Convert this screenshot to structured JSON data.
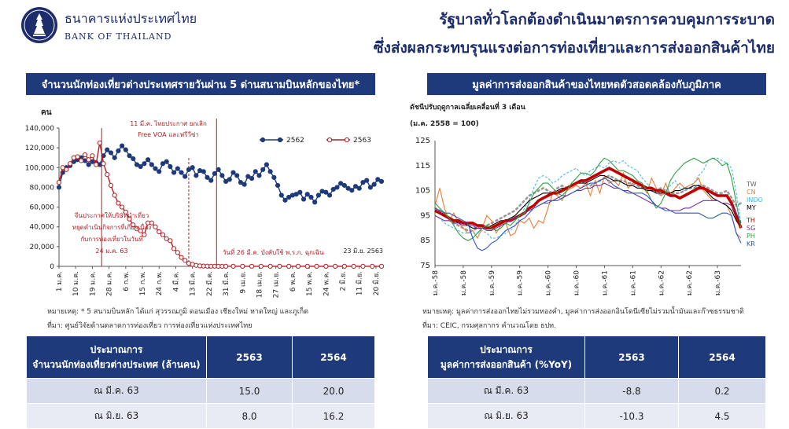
{
  "header": {
    "bank_name_th": "ธนาคารแห่งประเทศไทย",
    "bank_name_en": "BANK OF THAILAND",
    "headline_line1": "รัฐบาลทั่วโลกต้องดำเนินมาตรการควบคุมการระบาด",
    "headline_line2": "ซึ่งส่งผลกระทบรุนแรงต่อการท่องเที่ยวและการส่งออกสินค้าไทย"
  },
  "left_panel": {
    "title": "จำนวนนักท่องเที่ยวต่างประเทศรายวันผ่าน 5 ด่านสนามบินหลักของไทย*",
    "note": "หมายเหตุ: * 5 สนามบินหลัก ได้แก่ สุวรรณภูมิ ดอนเมือง เชียงใหม่ หาดใหญ่ และภูเก็ต",
    "source": "ที่มา: ศูนย์วิจัยด้านตลาดการท่องเที่ยว การท่องเที่ยวแห่งประเทศไทย",
    "table": {
      "header_line1": "ประมาณการ",
      "header_line2": "จำนวนนักท่องเที่ยวต่างประเทศ (ล้านคน)",
      "col1": "2563",
      "col2": "2564",
      "rows": [
        {
          "label": "ณ มี.ค. 63",
          "v1": "15.0",
          "v2": "20.0"
        },
        {
          "label": "ณ มิ.ย. 63",
          "v1": "8.0",
          "v2": "16.2"
        }
      ]
    }
  },
  "right_panel": {
    "title": "มูลค่าการส่งออกสินค้าของไทยหดตัวสอดคล้องกับภูมิภาค",
    "note": "หมายเหตุ: มูลค่าการส่งออกไทยไม่รวมทองคำ, มูลค่าการส่งออกอินโดนีเซียไม่รวมน้ำมันและก๊าซธรรมชาติ",
    "source": "ที่มา: CEIC, กรมศุลกากร คำนวณโดย ธปท.",
    "table": {
      "header_line1": "ประมาณการ",
      "header_line2": "มูลค่าการส่งออกสินค้า (%YoY)",
      "col1": "2563",
      "col2": "2564",
      "rows": [
        {
          "label": "ณ มี.ค. 63",
          "v1": "-8.8",
          "v2": "0.2"
        },
        {
          "label": "ณ มิ.ย. 63",
          "v1": "-10.3",
          "v2": "4.5"
        }
      ]
    }
  },
  "chart_data": [
    {
      "type": "line",
      "ylabel": "คน",
      "ylim": [
        0,
        140000
      ],
      "yticks": [
        "0",
        "20,000",
        "40,000",
        "60,000",
        "80,000",
        "100,000",
        "120,000",
        "140,000"
      ],
      "x_tick_labels": [
        "1 ม.ค.",
        "10 ม.ค.",
        "19 ม.ค.",
        "28 ม.ค.",
        "6 ก.พ.",
        "15 ก.พ.",
        "24 ก.พ.",
        "4 มี.ค.",
        "13 มี.ค.",
        "22 มี.ค.",
        "31 มี.ค.",
        "9 เม.ย.",
        "18 เม.ย.",
        "27 เม.ย.",
        "6 พ.ค.",
        "15 พ.ค.",
        "24 พ.ค.",
        "2 มิ.ย.",
        "11 มิ.ย.",
        "20 มิ.ย."
      ],
      "x_tick_days": [
        1,
        10,
        19,
        28,
        37,
        46,
        55,
        64,
        73,
        82,
        91,
        100,
        109,
        118,
        127,
        136,
        145,
        154,
        163,
        172
      ],
      "x_range_days": [
        1,
        175
      ],
      "series": [
        {
          "name": "2562",
          "color": "#1f3a7a",
          "days": [
            1,
            3,
            5,
            7,
            9,
            11,
            13,
            15,
            17,
            19,
            21,
            23,
            25,
            27,
            29,
            31,
            33,
            35,
            37,
            39,
            41,
            43,
            45,
            47,
            49,
            51,
            53,
            55,
            57,
            59,
            61,
            63,
            65,
            67,
            69,
            71,
            73,
            75,
            77,
            79,
            81,
            83,
            85,
            87,
            89,
            91,
            93,
            95,
            97,
            99,
            101,
            103,
            105,
            107,
            109,
            111,
            113,
            115,
            117,
            119,
            121,
            123,
            125,
            127,
            129,
            131,
            133,
            135,
            137,
            139,
            141,
            143,
            145,
            147,
            149,
            151,
            153,
            155,
            157,
            159,
            161,
            163,
            165,
            167,
            169,
            171,
            173,
            175
          ],
          "values": [
            80000,
            95000,
            100000,
            102000,
            106000,
            108000,
            110000,
            107000,
            103000,
            106000,
            105000,
            103000,
            112000,
            118000,
            115000,
            110000,
            117000,
            122000,
            118000,
            112000,
            109000,
            103000,
            101000,
            104000,
            108000,
            103000,
            99000,
            96000,
            104000,
            106000,
            101000,
            95000,
            99000,
            95000,
            91000,
            98000,
            100000,
            92000,
            97000,
            96000,
            90000,
            87000,
            94000,
            98000,
            92000,
            86000,
            88000,
            95000,
            92000,
            85000,
            83000,
            91000,
            89000,
            96000,
            92000,
            98000,
            103000,
            96000,
            90000,
            82000,
            72000,
            67000,
            70000,
            72000,
            73000,
            75000,
            68000,
            73000,
            70000,
            65000,
            72000,
            76000,
            75000,
            72000,
            78000,
            80000,
            84000,
            82000,
            79000,
            77000,
            81000,
            79000,
            85000,
            87000,
            80000,
            83000,
            88000,
            86000
          ]
        },
        {
          "name": "2563",
          "color": "#b21f24",
          "days": [
            1,
            3,
            5,
            7,
            9,
            11,
            13,
            15,
            17,
            19,
            21,
            23,
            25,
            27,
            29,
            31,
            33,
            35,
            37,
            39,
            41,
            43,
            45,
            47,
            49,
            51,
            53,
            55,
            57,
            59,
            61,
            63,
            65,
            67,
            69,
            71,
            73,
            75,
            77,
            79,
            81,
            83,
            85,
            87,
            89,
            91,
            95,
            100,
            105,
            110,
            115,
            120,
            125,
            130,
            135,
            140,
            145,
            150,
            155,
            160,
            165,
            170,
            175
          ],
          "values": [
            85000,
            100000,
            98000,
            104000,
            110000,
            111000,
            107000,
            113000,
            108000,
            112000,
            103000,
            125000,
            104000,
            93000,
            82000,
            72000,
            64000,
            60000,
            55000,
            48000,
            42000,
            38000,
            36000,
            32000,
            44000,
            44000,
            40000,
            35000,
            32000,
            28000,
            26000,
            18000,
            14000,
            9000,
            6000,
            3000,
            2000,
            1000,
            500,
            300,
            200,
            150,
            150,
            100,
            100,
            100,
            100,
            100,
            100,
            100,
            100,
            100,
            100,
            100,
            100,
            100,
            100,
            100,
            100,
            100,
            100,
            100,
            100
          ]
        }
      ],
      "annotations": {
        "visa_line1": "11 มี.ค. ไทยประกาศ ยกเลิก",
        "visa_line2": "Free VOA และฟรีวีซ่า",
        "china_line1": "จีนประกาศให้บริษัทนำเที่ยว",
        "china_line2": "หยุดดำเนินกิจการที่เกี่ยวเนื่อง",
        "china_line3": "กับการท่องเที่ยวในวันที่",
        "china_line4": "24 ม.ค. 63",
        "ban": "วันที่ 26 มี.ค. บังคับใช้ พ.ร.ก. ฉุกเฉิน",
        "last_date": "23 มิ.ย. 2563"
      },
      "event_days": {
        "china": 24,
        "visa": 71,
        "ban": 86
      }
    },
    {
      "type": "line",
      "title": "ดัชนีปรับฤดูกาลเฉลี่ยเคลื่อนที่ 3 เดือน",
      "subtitle": "(ม.ค. 2558 = 100)",
      "ylim": [
        75,
        125
      ],
      "yticks": [
        "75",
        "85",
        "95",
        "105",
        "115",
        "125"
      ],
      "x_tick_labels": [
        "ม.ค.-58",
        "ม.ค.-58",
        "ม.ค.-59",
        "ม.ค.-59",
        "ม.ค.-60",
        "ม.ค.-60",
        "ม.ค.-61",
        "ม.ค.-61",
        "ม.ค.-62",
        "ม.ค.-62",
        "ม.ค.-63"
      ],
      "x_tick_months": [
        0,
        6,
        12,
        18,
        24,
        30,
        36,
        42,
        48,
        54,
        60
      ],
      "x_range_months": [
        0,
        65
      ],
      "series": [
        {
          "name": "TW",
          "color": "#999999",
          "dashed": true,
          "values": [
            98,
            97,
            96,
            94,
            92,
            91,
            90,
            89,
            89,
            90,
            90,
            91,
            92,
            93,
            94,
            95,
            96,
            97,
            99,
            101,
            103,
            104,
            105,
            106,
            105,
            104,
            106,
            107,
            106,
            107,
            108,
            109,
            108,
            107,
            108,
            109,
            110,
            111,
            110,
            109,
            109,
            108,
            108,
            107,
            106,
            106,
            105,
            105,
            106,
            105,
            104,
            104,
            104,
            105,
            106,
            106,
            107,
            107,
            106,
            105,
            104,
            104,
            105,
            102,
            99,
            100
          ]
        },
        {
          "name": "CN",
          "color": "#ed7d31",
          "dashed": false,
          "values": [
            99,
            106,
            98,
            93,
            96,
            92,
            90,
            88,
            89,
            86,
            90,
            95,
            93,
            88,
            91,
            92,
            87,
            88,
            93,
            92,
            94,
            90,
            93,
            92,
            98,
            104,
            103,
            101,
            105,
            106,
            107,
            106,
            108,
            103,
            109,
            104,
            111,
            108,
            109,
            107,
            112,
            106,
            108,
            108,
            107,
            104,
            110,
            106,
            103,
            108,
            103,
            106,
            108,
            106,
            107,
            108,
            110,
            105,
            103,
            101,
            101,
            100,
            99,
            95,
            88,
            86
          ]
        },
        {
          "name": "INDO",
          "color": "#4ab8e8",
          "dashed": true,
          "values": [
            95,
            94,
            92,
            91,
            90,
            89,
            88,
            88,
            88,
            88,
            89,
            88,
            86,
            86,
            87,
            88,
            89,
            91,
            94,
            98,
            101,
            106,
            110,
            111,
            110,
            108,
            109,
            111,
            112,
            113,
            114,
            112,
            111,
            113,
            114,
            115,
            114,
            116,
            117,
            116,
            117,
            115,
            114,
            113,
            110,
            108,
            106,
            104,
            103,
            104,
            107,
            109,
            106,
            105,
            106,
            108,
            111,
            113,
            117,
            118,
            118,
            117,
            116,
            114,
            104,
            92
          ]
        },
        {
          "name": "MY",
          "color": "#000000",
          "dashed": false,
          "values": [
            97,
            96,
            95,
            94,
            93,
            92,
            92,
            91,
            90,
            90,
            90,
            90,
            91,
            92,
            93,
            93,
            94,
            95,
            97,
            99,
            101,
            102,
            103,
            104,
            104,
            104,
            105,
            106,
            106,
            107,
            108,
            108,
            108,
            109,
            110,
            111,
            111,
            110,
            109,
            109,
            108,
            107,
            107,
            106,
            106,
            105,
            105,
            104,
            104,
            104,
            104,
            105,
            105,
            106,
            106,
            107,
            107,
            106,
            104,
            102,
            101,
            100,
            99,
            97,
            93,
            90
          ]
        },
        {
          "name": "TH",
          "color": "#c00000",
          "dashed": false,
          "thick": true,
          "values": [
            97,
            96,
            95,
            94,
            93,
            93,
            92,
            92,
            92,
            91,
            91,
            90,
            90,
            91,
            92,
            93,
            93,
            94,
            95,
            96,
            98,
            99,
            101,
            102,
            103,
            104,
            104,
            105,
            106,
            107,
            108,
            109,
            109,
            110,
            111,
            112,
            113,
            114,
            113,
            112,
            111,
            110,
            109,
            108,
            107,
            106,
            106,
            105,
            105,
            104,
            103,
            103,
            102,
            103,
            104,
            105,
            106,
            106,
            105,
            104,
            103,
            103,
            103,
            100,
            95,
            90
          ]
        },
        {
          "name": "SG",
          "color": "#7030a0",
          "dashed": false,
          "values": [
            95,
            94,
            93,
            93,
            92,
            92,
            91,
            91,
            91,
            90,
            90,
            89,
            89,
            90,
            91,
            92,
            93,
            94,
            95,
            96,
            97,
            98,
            99,
            100,
            101,
            101,
            102,
            103,
            103,
            104,
            105,
            105,
            106,
            106,
            107,
            107,
            108,
            107,
            106,
            106,
            105,
            105,
            104,
            103,
            102,
            101,
            100,
            99,
            98,
            98,
            97,
            97,
            97,
            98,
            98,
            99,
            100,
            101,
            101,
            101,
            101,
            100,
            100,
            99,
            96,
            92
          ]
        },
        {
          "name": "PH",
          "color": "#2ea043",
          "dashed": false,
          "values": [
            100,
            98,
            96,
            94,
            91,
            88,
            86,
            85,
            86,
            88,
            90,
            91,
            90,
            89,
            90,
            92,
            91,
            93,
            95,
            96,
            100,
            104,
            106,
            108,
            108,
            106,
            104,
            103,
            105,
            108,
            110,
            112,
            112,
            111,
            113,
            116,
            118,
            117,
            115,
            113,
            113,
            112,
            111,
            109,
            108,
            105,
            101,
            98,
            100,
            104,
            109,
            112,
            114,
            116,
            117,
            118,
            117,
            116,
            117,
            118,
            117,
            115,
            116,
            110,
            100,
            90
          ]
        },
        {
          "name": "KR",
          "color": "#2f56c6",
          "dashed": false,
          "values": [
            98,
            97,
            96,
            96,
            95,
            94,
            93,
            92,
            86,
            82,
            81,
            82,
            84,
            85,
            87,
            89,
            90,
            91,
            93,
            94,
            96,
            98,
            99,
            100,
            100,
            101,
            101,
            102,
            103,
            104,
            105,
            106,
            107,
            108,
            108,
            109,
            110,
            109,
            107,
            106,
            105,
            104,
            104,
            104,
            104,
            103,
            101,
            99,
            98,
            97,
            97,
            96,
            96,
            96,
            96,
            96,
            96,
            95,
            94,
            94,
            95,
            96,
            96,
            95,
            88,
            84
          ]
        }
      ]
    }
  ]
}
